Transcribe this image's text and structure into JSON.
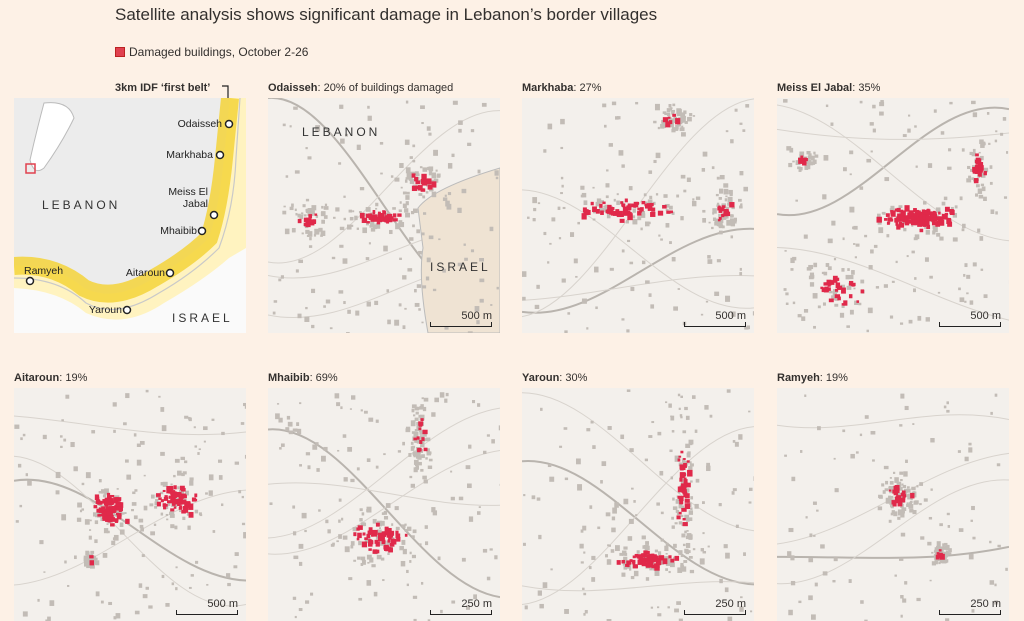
{
  "title": "Satellite analysis shows significant damage in Lebanon’s border villages",
  "legend": "Damaged buildings, October 2-26",
  "overview": {
    "caption": "3km IDF ‘first belt’",
    "lebanon": "LEBANON",
    "israel": "ISRAEL",
    "villages": [
      "Odaisseh",
      "Markhaba",
      "Meiss El Jabal",
      "Mhaibib",
      "Aitaroun",
      "Ramyeh",
      "Yaroun"
    ]
  },
  "panels": [
    {
      "name": "Odaisseh",
      "detail": ": 20% of buildings damaged",
      "scale": "500 m",
      "labels": [
        "LEBANON",
        "ISRAEL"
      ]
    },
    {
      "name": "Markhaba",
      "detail": ": 27%",
      "scale": "500 m"
    },
    {
      "name": "Meiss El Jabal",
      "detail": ": 35%",
      "scale": "500 m"
    },
    {
      "name": "Aitaroun",
      "detail": ": 19%",
      "scale": "500 m"
    },
    {
      "name": "Mhaibib",
      "detail": ": 69%",
      "scale": "250 m"
    },
    {
      "name": "Yaroun",
      "detail": ": 30%",
      "scale": "250 m"
    },
    {
      "name": "Ramyeh",
      "detail": ": 19%",
      "scale": "250 m"
    }
  ]
}
